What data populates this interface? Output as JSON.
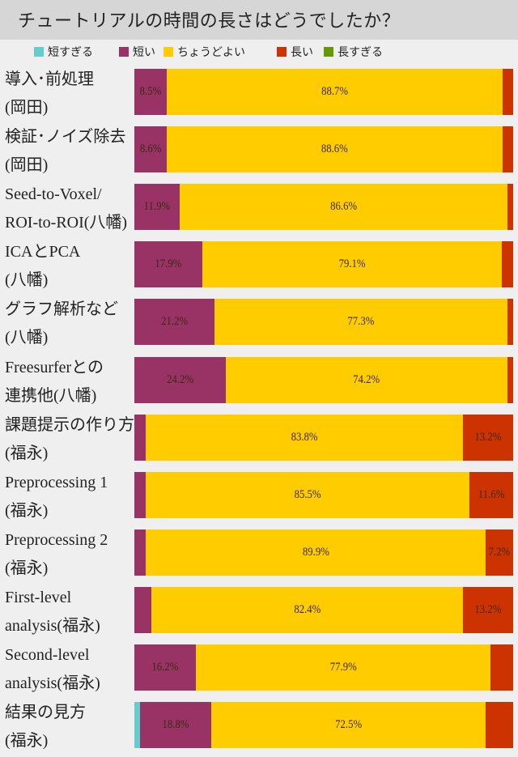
{
  "chart_data": {
    "type": "bar",
    "orientation": "horizontal",
    "stacked": true,
    "title": "チュートリアルの時間の長さはどうでしたか？",
    "xlim": [
      0,
      100
    ],
    "legend_position": "top",
    "series": [
      {
        "name": "短すぎる",
        "color": "#66cccc",
        "values": [
          0,
          0,
          0,
          0,
          0,
          0,
          0,
          0,
          0,
          0,
          0,
          1.4
        ]
      },
      {
        "name": "短い",
        "color": "#993366",
        "values": [
          8.5,
          8.6,
          11.9,
          17.9,
          21.2,
          24.2,
          3.0,
          2.9,
          2.9,
          4.4,
          16.2,
          18.8
        ]
      },
      {
        "name": "ちょうどよい",
        "color": "#ffcc00",
        "values": [
          88.7,
          88.6,
          86.6,
          79.1,
          77.3,
          74.2,
          83.8,
          85.5,
          89.9,
          82.4,
          77.9,
          72.5
        ]
      },
      {
        "name": "長い",
        "color": "#cc3300",
        "values": [
          2.8,
          2.8,
          1.5,
          3.0,
          1.5,
          1.6,
          13.2,
          11.6,
          7.2,
          13.2,
          5.9,
          7.3
        ]
      },
      {
        "name": "長すぎる",
        "color": "#669900",
        "values": [
          0,
          0,
          0,
          0,
          0,
          0,
          0,
          0,
          0,
          0,
          0,
          0
        ]
      }
    ],
    "categories": [
      [
        "導入･前処理",
        "(岡田)"
      ],
      [
        "検証･ノイズ除去",
        "(岡田)"
      ],
      [
        "Seed-to-Voxel/",
        "ROI-to-ROI(八幡)"
      ],
      [
        "ICAとPCA",
        "(八幡)"
      ],
      [
        "グラフ解析など",
        "(八幡)"
      ],
      [
        "Freesurferとの",
        "連携他(八幡)"
      ],
      [
        "課題提示の作り方",
        "(福永)"
      ],
      [
        "Preprocessing 1",
        "(福永)"
      ],
      [
        "Preprocessing 2",
        "(福永)"
      ],
      [
        "First-level",
        "analysis(福永)"
      ],
      [
        "Second-level",
        "analysis(福永)"
      ],
      [
        "結果の見方",
        "(福永)"
      ]
    ],
    "data_labels": [
      [
        null,
        "8.5%",
        "88.7%",
        null,
        null
      ],
      [
        null,
        "8.6%",
        "88.6%",
        null,
        null
      ],
      [
        null,
        "11.9%",
        "86.6%",
        null,
        null
      ],
      [
        null,
        "17.9%",
        "79.1%",
        null,
        null
      ],
      [
        null,
        "21.2%",
        "77.3%",
        null,
        null
      ],
      [
        null,
        "24.2%",
        "74.2%",
        null,
        null
      ],
      [
        null,
        null,
        "83.8%",
        "13.2%",
        null
      ],
      [
        null,
        null,
        "85.5%",
        "11.6%",
        null
      ],
      [
        null,
        null,
        "89.9%",
        "7.2%",
        null
      ],
      [
        null,
        null,
        "82.4%",
        "13.2%",
        null
      ],
      [
        null,
        "16.2%",
        "77.9%",
        null,
        null
      ],
      [
        null,
        "18.8%",
        "72.5%",
        null,
        null
      ]
    ]
  }
}
